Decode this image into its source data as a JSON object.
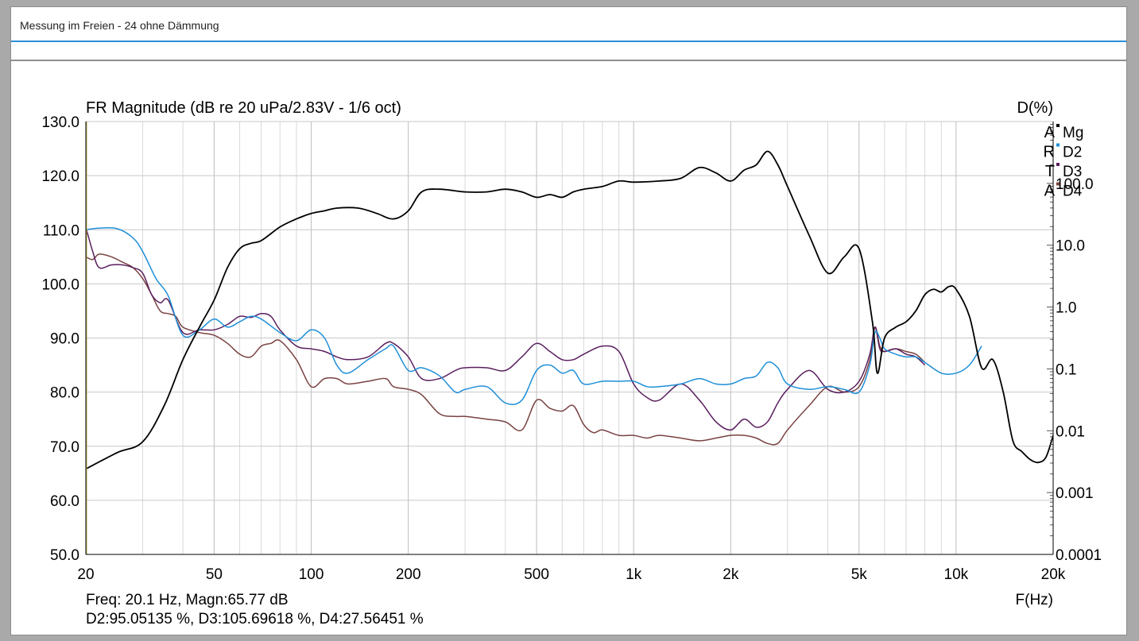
{
  "window": {
    "title": "Messung im Freien - 24 ohne Dämmung"
  },
  "chart_data": {
    "type": "line",
    "title": "FR Magnitude (dB re 20 uPa/2.83V - 1/6 oct)",
    "xlabel": "F(Hz)",
    "ylabel_right": "D(%)",
    "x_scale": "log",
    "xlim": [
      20,
      20000
    ],
    "ylim": [
      50,
      130
    ],
    "y_right_scale": "log",
    "y_right_lim": [
      0.0001,
      1000
    ],
    "grid": true,
    "x_ticks": [
      "20",
      "50",
      "100",
      "200",
      "500",
      "1k",
      "2k",
      "5k",
      "10k",
      "20k"
    ],
    "x_tick_values": [
      20,
      50,
      100,
      200,
      500,
      1000,
      2000,
      5000,
      10000,
      20000
    ],
    "y_ticks": [
      "50.0",
      "60.0",
      "70.0",
      "80.0",
      "90.0",
      "100.0",
      "110.0",
      "120.0",
      "130.0"
    ],
    "y_tick_values": [
      50,
      60,
      70,
      80,
      90,
      100,
      110,
      120,
      130
    ],
    "y_right_ticks": [
      "0.0001",
      "0.001",
      "0.01",
      "0.1",
      "1.0",
      "10.0",
      "100.0"
    ],
    "y_right_tick_values": [
      0.0001,
      0.001,
      0.01,
      0.1,
      1,
      10,
      100
    ],
    "brand": [
      "A",
      "R",
      "T",
      "A"
    ],
    "legend_position": "top-right",
    "series": [
      {
        "name": "Mg",
        "color": "#000000",
        "x": [
          20,
          25,
          30,
          35,
          40,
          45,
          50,
          55,
          60,
          65,
          70,
          80,
          90,
          100,
          110,
          120,
          140,
          160,
          180,
          200,
          220,
          250,
          300,
          350,
          400,
          450,
          500,
          550,
          600,
          650,
          700,
          800,
          900,
          1000,
          1200,
          1400,
          1600,
          1800,
          2000,
          2200,
          2400,
          2600,
          2800,
          3000,
          3500,
          4000,
          4500,
          5000,
          5500,
          5700,
          6000,
          6500,
          7000,
          7500,
          8000,
          8500,
          9000,
          9500,
          10000,
          11000,
          12000,
          13000,
          14000,
          15000,
          16000,
          17000,
          18000,
          19000,
          20000
        ],
        "y": [
          65.8,
          68.8,
          70.8,
          77.5,
          86.0,
          92.0,
          97.0,
          103.0,
          106.5,
          107.5,
          108.0,
          110.5,
          112.0,
          113.0,
          113.5,
          114.0,
          114.0,
          113.0,
          112.0,
          113.5,
          117.0,
          117.5,
          117.0,
          117.0,
          117.5,
          117.0,
          116.0,
          116.5,
          116.0,
          117.0,
          117.5,
          118.0,
          119.0,
          118.8,
          119.0,
          119.5,
          121.5,
          120.5,
          119.0,
          121.0,
          122.0,
          124.5,
          122.0,
          118.0,
          109.0,
          102.0,
          105.0,
          106.5,
          93.0,
          83.5,
          90.0,
          92.0,
          93.0,
          95.0,
          98.0,
          99.0,
          98.5,
          99.5,
          99.0,
          94.0,
          84.5,
          86.0,
          80.0,
          71.0,
          69.0,
          67.5,
          67.0,
          68.0,
          72.0
        ]
      },
      {
        "name": "D2",
        "color": "#1e8fd8",
        "x": [
          20,
          22,
          25,
          28,
          30,
          33,
          36,
          40,
          45,
          50,
          55,
          60,
          65,
          70,
          80,
          90,
          100,
          110,
          120,
          130,
          150,
          170,
          180,
          200,
          220,
          250,
          280,
          300,
          350,
          400,
          450,
          500,
          550,
          600,
          650,
          700,
          800,
          900,
          1000,
          1100,
          1200,
          1400,
          1600,
          1800,
          2000,
          2200,
          2400,
          2600,
          2800,
          3000,
          3500,
          4000,
          4500,
          5000,
          5400,
          5600,
          5800,
          6000,
          6500,
          7000,
          7500,
          8000,
          9000,
          10000,
          11000,
          12000
        ],
        "x_cont": [],
        "y": [
          110.0,
          110.3,
          110.2,
          108.5,
          106.0,
          101.0,
          97.8,
          90.5,
          91.5,
          93.5,
          92.0,
          93.0,
          94.0,
          93.5,
          91.0,
          89.5,
          91.5,
          90.0,
          85.0,
          83.5,
          86.0,
          88.0,
          88.5,
          84.0,
          84.5,
          83.0,
          80.0,
          80.5,
          81.0,
          78.0,
          78.5,
          84.0,
          85.0,
          83.5,
          84.0,
          81.5,
          82.0,
          82.0,
          82.0,
          81.0,
          81.0,
          81.5,
          82.5,
          81.5,
          81.5,
          82.5,
          83.0,
          85.5,
          84.5,
          81.5,
          80.5,
          81.0,
          80.5,
          80.0,
          85.0,
          91.0,
          90.0,
          88.0,
          87.0,
          86.5,
          86.5,
          85.5,
          83.5,
          83.5,
          85.0,
          88.5
        ]
      },
      {
        "name": "D3",
        "color": "#5a1f5e",
        "x": [
          20,
          21,
          22,
          24,
          26,
          28,
          30,
          32,
          34,
          36,
          40,
          45,
          50,
          55,
          60,
          65,
          70,
          75,
          80,
          90,
          100,
          110,
          120,
          130,
          150,
          170,
          180,
          200,
          220,
          250,
          280,
          300,
          350,
          400,
          450,
          500,
          550,
          600,
          650,
          700,
          800,
          900,
          1000,
          1100,
          1200,
          1400,
          1600,
          1800,
          2000,
          2200,
          2400,
          2600,
          2800,
          3000,
          3500,
          4000,
          4500,
          5000,
          5400,
          5600,
          5800,
          6000,
          6500,
          7000,
          7500,
          8000
        ],
        "y": [
          110.5,
          106.0,
          103.0,
          103.5,
          103.5,
          103.0,
          102.0,
          98.0,
          96.5,
          97.0,
          91.0,
          91.5,
          91.5,
          92.5,
          94.0,
          93.8,
          94.5,
          94.0,
          91.5,
          88.5,
          88.0,
          87.5,
          86.5,
          86.0,
          86.5,
          89.0,
          89.0,
          86.5,
          82.5,
          82.5,
          84.0,
          84.5,
          84.5,
          84.0,
          86.5,
          89.0,
          87.5,
          86.0,
          86.0,
          87.0,
          88.5,
          87.5,
          81.5,
          79.0,
          78.5,
          81.5,
          78.5,
          74.5,
          73.0,
          75.0,
          73.5,
          74.5,
          78.0,
          80.5,
          84.0,
          80.5,
          80.0,
          82.0,
          87.0,
          92.0,
          88.0,
          87.5,
          88.0,
          87.0,
          86.5,
          85.0
        ]
      },
      {
        "name": "D4",
        "color": "#7a4242",
        "x": [
          20,
          21,
          22,
          24,
          26,
          28,
          30,
          32,
          34,
          36,
          38,
          40,
          45,
          50,
          55,
          60,
          65,
          70,
          75,
          80,
          90,
          100,
          110,
          120,
          130,
          150,
          170,
          180,
          200,
          220,
          250,
          280,
          300,
          350,
          400,
          450,
          500,
          550,
          600,
          650,
          700,
          750,
          800,
          900,
          1000,
          1100,
          1200,
          1400,
          1600,
          1800,
          2000,
          2200,
          2400,
          2600,
          2800,
          3000,
          3500,
          4000,
          4500,
          5000,
          5400,
          5600,
          5800,
          6000,
          6500,
          7000,
          7500,
          8000
        ],
        "y": [
          105.0,
          104.5,
          105.5,
          105.0,
          104.0,
          103.0,
          101.0,
          98.0,
          95.0,
          94.5,
          94.0,
          92.0,
          91.0,
          90.5,
          89.0,
          87.0,
          86.5,
          88.5,
          89.0,
          89.5,
          86.0,
          81.0,
          82.5,
          82.5,
          81.5,
          82.0,
          82.5,
          81.0,
          80.5,
          79.5,
          76.0,
          75.5,
          75.5,
          75.0,
          74.5,
          73.0,
          78.5,
          77.0,
          76.5,
          77.5,
          74.0,
          72.5,
          73.0,
          72.0,
          72.0,
          71.5,
          72.0,
          71.5,
          71.0,
          71.5,
          72.0,
          72.0,
          71.5,
          70.5,
          70.5,
          73.0,
          77.5,
          81.0,
          80.0,
          81.0,
          86.0,
          92.0,
          88.5,
          87.5,
          88.0,
          87.5,
          87.0,
          85.5
        ]
      }
    ],
    "cursor": {
      "freq_readout": "Freq: 20.1 Hz, Magn:65.77 dB",
      "dist_readout": "D2:95.05135 %, D3:105.69618 %, D4:27.56451 %"
    }
  }
}
